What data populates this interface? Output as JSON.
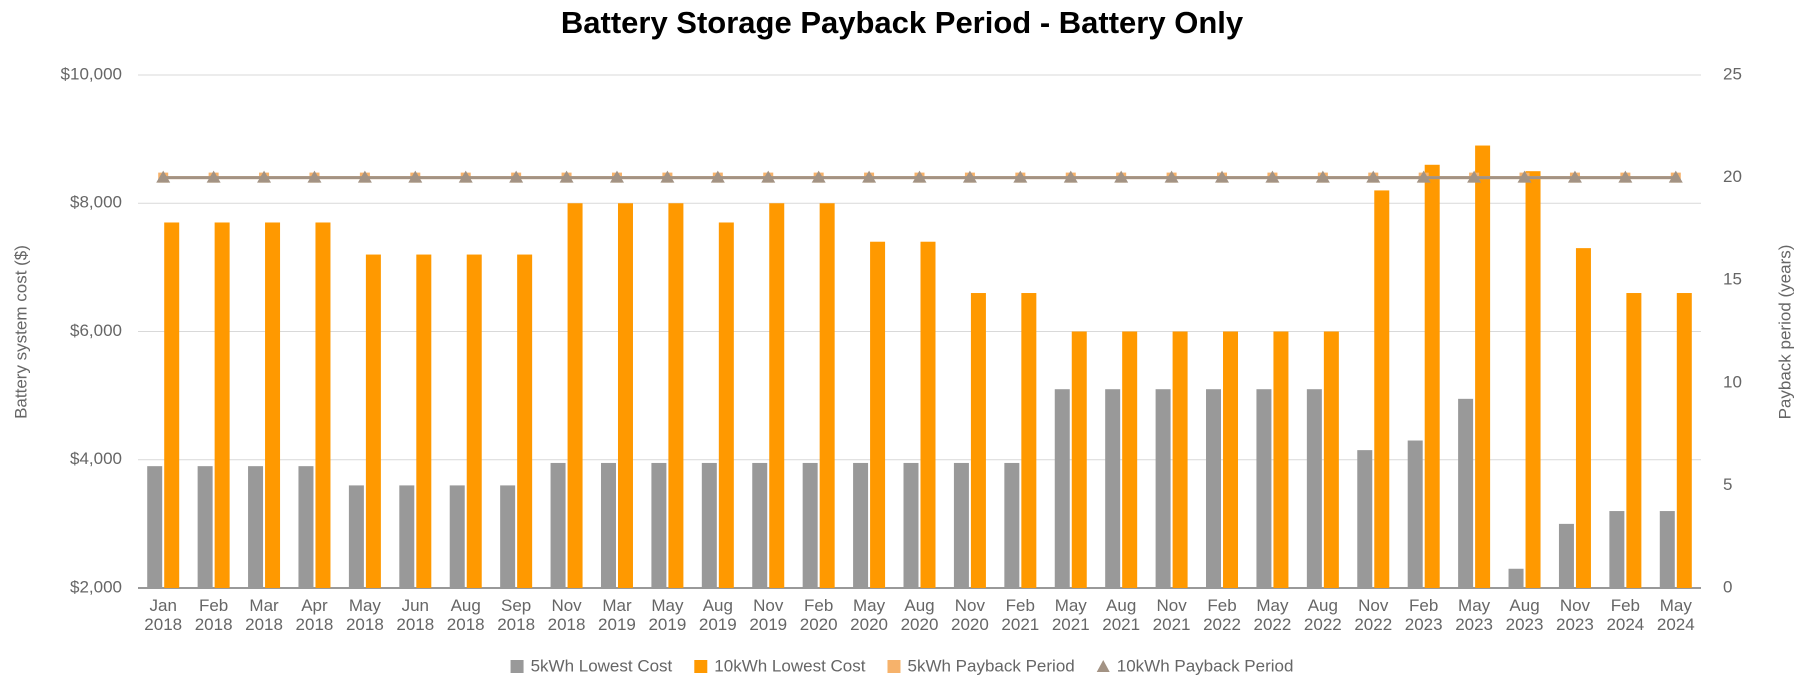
{
  "chart_data": {
    "type": "bar",
    "title": "Battery Storage Payback Period - Battery Only",
    "y_label": "Battery system cost ($)",
    "y2_label": "Payback period (years)",
    "categories": [
      "Jan 2018",
      "Feb 2018",
      "Mar 2018",
      "Apr 2018",
      "May 2018",
      "Jun 2018",
      "Aug 2018",
      "Sep 2018",
      "Nov 2018",
      "Mar 2019",
      "May 2019",
      "Aug 2019",
      "Nov 2019",
      "Feb 2020",
      "May 2020",
      "Aug 2020",
      "Nov 2020",
      "Feb 2021",
      "May 2021",
      "Aug 2021",
      "Nov 2021",
      "Feb 2022",
      "May 2022",
      "Aug 2022",
      "Nov 2022",
      "Feb 2023",
      "May 2023",
      "Aug 2023",
      "Nov 2023",
      "Feb 2024",
      "May 2024"
    ],
    "series": [
      {
        "name": "5kWh Lowest Cost",
        "type": "bar",
        "color": "#999999",
        "values": [
          3900,
          3900,
          3900,
          3900,
          3600,
          3600,
          3600,
          3600,
          3950,
          3950,
          3950,
          3950,
          3950,
          3950,
          3950,
          3950,
          3950,
          3950,
          5100,
          5100,
          5100,
          5100,
          5100,
          5100,
          4150,
          4300,
          4950,
          2300,
          3000,
          3200,
          3200
        ]
      },
      {
        "name": "10kWh Lowest Cost",
        "type": "bar",
        "color": "#ff9900",
        "values": [
          7700,
          7700,
          7700,
          7700,
          7200,
          7200,
          7200,
          7200,
          8000,
          8000,
          8000,
          7700,
          8000,
          8000,
          7400,
          7400,
          6600,
          6600,
          6000,
          6000,
          6000,
          6000,
          6000,
          6000,
          8200,
          8600,
          8900,
          8500,
          7300,
          6600,
          6600
        ]
      },
      {
        "name": "5kWh Payback Period",
        "type": "line",
        "axis": "y2",
        "marker": "square",
        "color": "#f6b26b",
        "values": [
          20,
          20,
          20,
          20,
          20,
          20,
          20,
          20,
          20,
          20,
          20,
          20,
          20,
          20,
          20,
          20,
          20,
          20,
          20,
          20,
          20,
          20,
          20,
          20,
          20,
          20,
          20,
          20,
          20,
          20,
          20
        ]
      },
      {
        "name": "10kWh Payback Period",
        "type": "line",
        "axis": "y2",
        "marker": "triangle",
        "color": "#a39384",
        "values": [
          20,
          20,
          20,
          20,
          20,
          20,
          20,
          20,
          20,
          20,
          20,
          20,
          20,
          20,
          20,
          20,
          20,
          20,
          20,
          20,
          20,
          20,
          20,
          20,
          20,
          20,
          20,
          20,
          20,
          20,
          20
        ]
      }
    ],
    "ylim": [
      2000,
      10000
    ],
    "yticks": [
      {
        "value": 2000,
        "label": "$2,000"
      },
      {
        "value": 4000,
        "label": "$4,000"
      },
      {
        "value": 6000,
        "label": "$6,000"
      },
      {
        "value": 8000,
        "label": "$8,000"
      },
      {
        "value": 10000,
        "label": "$10,000"
      }
    ],
    "y2lim": [
      0,
      25
    ],
    "y2ticks": [
      0,
      5,
      10,
      15,
      20,
      25
    ],
    "grid": true,
    "legend": "bottom"
  }
}
